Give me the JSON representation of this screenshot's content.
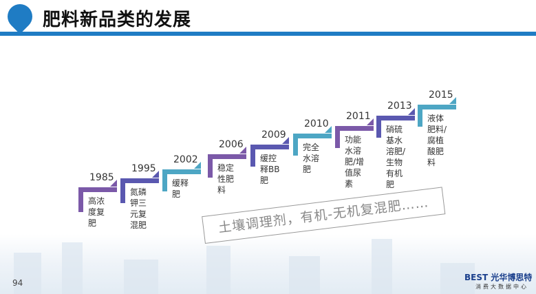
{
  "header": {
    "title": "肥料新品类的发展",
    "logo_icon": "tractor-pin-icon"
  },
  "colors": {
    "purple": "#7b59a8",
    "indigo": "#5a58b0",
    "teal": "#4da6c4",
    "header_blue": "#1f7cc4"
  },
  "timeline": [
    {
      "year": "1985",
      "text": "高浓度复肥",
      "color": "purple"
    },
    {
      "year": "1995",
      "text": "氮磷钾三元复混肥",
      "color": "indigo"
    },
    {
      "year": "2002",
      "text": "缓释肥",
      "color": "teal"
    },
    {
      "year": "2006",
      "text": "稳定性肥料",
      "color": "purple"
    },
    {
      "year": "2009",
      "text": "缓控释BB肥",
      "color": "indigo"
    },
    {
      "year": "2010",
      "text": "完全水溶肥",
      "color": "teal"
    },
    {
      "year": "2011",
      "text": "功能水溶肥/增值尿素",
      "color": "purple"
    },
    {
      "year": "2013",
      "text": "硝硫基水溶肥/生物有机肥",
      "color": "indigo"
    },
    {
      "year": "2015",
      "text": "液体肥料/腐植酸肥料",
      "color": "teal"
    }
  ],
  "banner": "土壤调理剂，有机-无机复混肥……",
  "footer": {
    "page_number": "94",
    "brand": "BEST 光华博思特",
    "brand_sub": "消费大数据中心"
  }
}
